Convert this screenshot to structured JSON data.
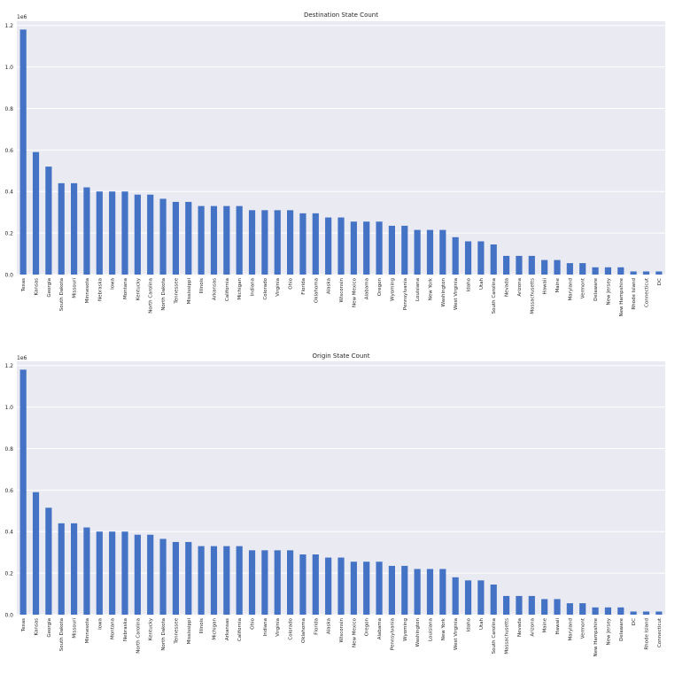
{
  "chart_data": [
    {
      "type": "bar",
      "title": "Destination State Count",
      "xlabel": "",
      "ylabel": "",
      "y_multiplier_label": "1e6",
      "ylim": [
        0,
        1.22
      ],
      "yticks": [
        0.0,
        0.2,
        0.4,
        0.6,
        0.8,
        1.0,
        1.2
      ],
      "grid": true,
      "bar_color": "#4472c4",
      "background": "#eaeaf2",
      "categories": [
        "Texas",
        "Kansas",
        "Georgia",
        "South Dakota",
        "Missouri",
        "Minnesota",
        "Nebraska",
        "Iowa",
        "Montana",
        "Kentucky",
        "North Carolina",
        "North Dakota",
        "Tennessee",
        "Mississippi",
        "Illinois",
        "Arkansas",
        "California",
        "Michigan",
        "Indiana",
        "Colorado",
        "Virginia",
        "Ohio",
        "Florida",
        "Oklahoma",
        "Alaska",
        "Wisconsin",
        "New Mexico",
        "Alabama",
        "Oregon",
        "Wyoming",
        "Pennsylvania",
        "Louisiana",
        "New York",
        "Washington",
        "West Virginia",
        "Idaho",
        "Utah",
        "South Carolina",
        "Nevada",
        "Arizona",
        "Massachusetts",
        "Hawaii",
        "Maine",
        "Maryland",
        "Vermont",
        "Delaware",
        "New Jersey",
        "New Hampshire",
        "Rhode Island",
        "Connecticut",
        "DC"
      ],
      "values": [
        1.18,
        0.59,
        0.52,
        0.44,
        0.44,
        0.42,
        0.4,
        0.4,
        0.4,
        0.385,
        0.385,
        0.365,
        0.35,
        0.35,
        0.33,
        0.33,
        0.33,
        0.33,
        0.31,
        0.31,
        0.31,
        0.31,
        0.295,
        0.295,
        0.275,
        0.275,
        0.255,
        0.255,
        0.255,
        0.235,
        0.235,
        0.215,
        0.215,
        0.215,
        0.18,
        0.16,
        0.16,
        0.145,
        0.09,
        0.09,
        0.09,
        0.07,
        0.07,
        0.055,
        0.055,
        0.035,
        0.035,
        0.035,
        0.015,
        0.015,
        0.015
      ]
    },
    {
      "type": "bar",
      "title": "Origin State Count",
      "xlabel": "",
      "ylabel": "",
      "y_multiplier_label": "1e6",
      "ylim": [
        0,
        1.22
      ],
      "yticks": [
        0.0,
        0.2,
        0.4,
        0.6,
        0.8,
        1.0,
        1.2
      ],
      "grid": true,
      "bar_color": "#4472c4",
      "background": "#eaeaf2",
      "categories": [
        "Texas",
        "Kansas",
        "Georgia",
        "South Dakota",
        "Missouri",
        "Minnesota",
        "Iowa",
        "Montana",
        "Nebraska",
        "North Carolina",
        "Kentucky",
        "North Dakota",
        "Tennessee",
        "Mississippi",
        "Illinois",
        "Michigan",
        "Arkansas",
        "California",
        "Ohio",
        "Indiana",
        "Virginia",
        "Colorado",
        "Oklahoma",
        "Florida",
        "Alaska",
        "Wisconsin",
        "New Mexico",
        "Oregon",
        "Alabama",
        "Pennsylvania",
        "Wyoming",
        "Washington",
        "Louisiana",
        "New York",
        "West Virginia",
        "Idaho",
        "Utah",
        "South Carolina",
        "Massachusetts",
        "Nevada",
        "Arizona",
        "Maine",
        "Hawaii",
        "Maryland",
        "Vermont",
        "New Hampshire",
        "New Jersey",
        "Delaware",
        "DC",
        "Rhode Island",
        "Connecticut"
      ],
      "values": [
        1.18,
        0.59,
        0.515,
        0.44,
        0.44,
        0.42,
        0.4,
        0.4,
        0.4,
        0.385,
        0.385,
        0.365,
        0.35,
        0.35,
        0.33,
        0.33,
        0.33,
        0.33,
        0.31,
        0.31,
        0.31,
        0.31,
        0.29,
        0.29,
        0.275,
        0.275,
        0.255,
        0.255,
        0.255,
        0.235,
        0.235,
        0.22,
        0.22,
        0.22,
        0.18,
        0.165,
        0.165,
        0.145,
        0.09,
        0.09,
        0.09,
        0.075,
        0.075,
        0.055,
        0.055,
        0.035,
        0.035,
        0.035,
        0.015,
        0.015,
        0.015
      ]
    }
  ]
}
